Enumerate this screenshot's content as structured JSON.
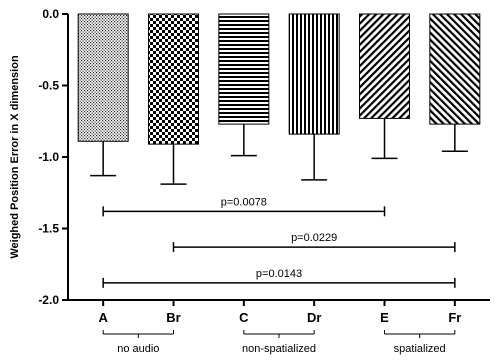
{
  "chart_data": {
    "type": "bar",
    "title": "",
    "xlabel": "",
    "ylabel": "Weighed Position Error in X dimension",
    "ylim": [
      -2.0,
      0.0
    ],
    "yticks": [
      "0.0",
      "-0.5",
      "-1.0",
      "-1.5",
      "-2.0"
    ],
    "ytick_values": [
      0.0,
      -0.5,
      -1.0,
      -1.5,
      -2.0
    ],
    "categories": [
      "A",
      "Br",
      "C",
      "Dr",
      "E",
      "Fr"
    ],
    "values": [
      -0.89,
      -0.91,
      -0.77,
      -0.84,
      -0.73,
      -0.77
    ],
    "error_high": [
      0.24,
      0.28,
      0.22,
      0.32,
      0.28,
      0.19
    ],
    "patterns": [
      "dots",
      "checker",
      "hlines",
      "vlines",
      "diag-left",
      "diag-right"
    ],
    "groups": [
      {
        "label": "no audio",
        "from": 0,
        "to": 1
      },
      {
        "label": "non-spatialized",
        "from": 2,
        "to": 3
      },
      {
        "label": "spatialized",
        "from": 4,
        "to": 5
      }
    ],
    "comparisons": [
      {
        "from": 0,
        "to": 4,
        "y": -1.38,
        "label": "p=0.0078"
      },
      {
        "from": 1,
        "to": 5,
        "y": -1.63,
        "label": "p=0.0229"
      },
      {
        "from": 0,
        "to": 5,
        "y": -1.88,
        "label": "p=0.0143"
      }
    ],
    "grid": false,
    "legend": "none"
  }
}
